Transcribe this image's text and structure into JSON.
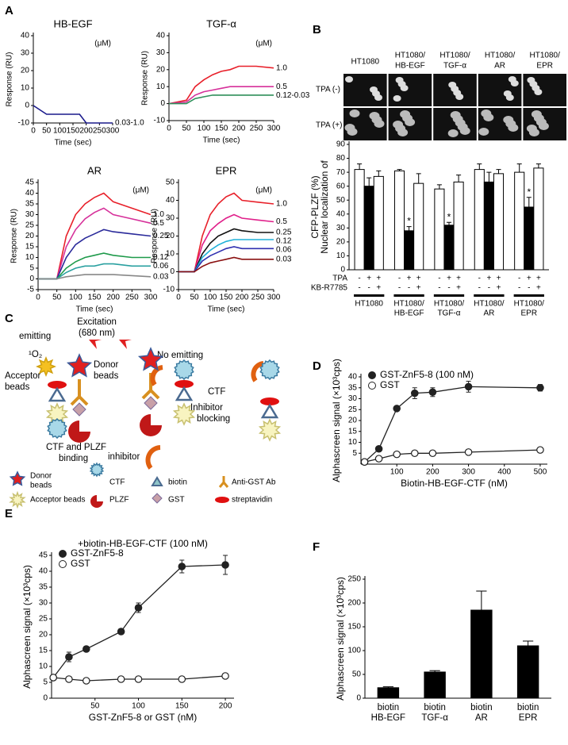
{
  "panels": [
    "A",
    "B",
    "C",
    "D",
    "E",
    "F"
  ],
  "panel_b_images": {
    "columns": [
      [
        "HT1080"
      ],
      [
        "HT1080/",
        "HB-EGF"
      ],
      [
        "HT1080/",
        "TGF-α"
      ],
      [
        "HT1080/",
        "AR"
      ],
      [
        "HT1080/",
        "EPR"
      ]
    ],
    "rows": [
      "TPA (-)",
      "TPA (+)"
    ]
  },
  "diagram": {
    "excitation": [
      "Excitation",
      "(680 nm)"
    ],
    "emitting": "emitting",
    "singlet_oxygen": "¹O₂",
    "acceptor": [
      "Acceptor",
      "beads"
    ],
    "donor": [
      "Donor",
      "beads"
    ],
    "binding": [
      "CTF and PLZF",
      "binding"
    ],
    "no_emitting": "No emitting",
    "ctf": "CTF",
    "blocking": [
      "Inhibitor",
      "blocking"
    ],
    "inhibitor": "inhibitor",
    "legend": {
      "donor": [
        "Donor",
        "beads"
      ],
      "acceptor": "Acceptor beads",
      "ctf": "CTF",
      "plzf": "PLZF",
      "biotin": "biotin",
      "gst": "GST",
      "ab": "Anti-GST Ab",
      "streptavidin": "streptavidin"
    }
  },
  "chart_data": [
    {
      "type": "line",
      "title": "HB-EGF",
      "unit": "(μM)",
      "xlabel": "Time (sec)",
      "ylabel": "Response (RU)",
      "end_labels": true,
      "x": [
        0,
        50,
        75,
        100,
        125,
        150,
        175,
        200,
        250,
        300
      ],
      "xlim": [
        0,
        300
      ],
      "xticks": [
        0,
        50,
        100,
        150,
        200,
        250,
        300
      ],
      "ylim": [
        -10,
        40
      ],
      "yticks": [
        -10,
        0,
        10,
        20,
        30,
        40
      ],
      "series": [
        {
          "name": "0.03-1.0",
          "color": "#1a1a8c",
          "values": [
            0,
            -5,
            -5,
            -5,
            -5,
            -5,
            -5,
            -10,
            -10,
            -10
          ]
        }
      ]
    },
    {
      "type": "line",
      "title": "TGF-α",
      "unit": "(μM)",
      "xlabel": "Time (sec)",
      "ylabel": "Response (RU)",
      "end_labels": true,
      "x": [
        0,
        50,
        75,
        100,
        125,
        150,
        175,
        200,
        250,
        300
      ],
      "xlim": [
        0,
        300
      ],
      "xticks": [
        0,
        50,
        100,
        150,
        200,
        250,
        300
      ],
      "ylim": [
        -10,
        40
      ],
      "yticks": [
        -10,
        0,
        10,
        20,
        30,
        40
      ],
      "series": [
        {
          "name": "1.0",
          "color": "#e8202a",
          "values": [
            0,
            2,
            10,
            14,
            17,
            19,
            20,
            22,
            22,
            21
          ]
        },
        {
          "name": "0.5",
          "color": "#d6309a",
          "values": [
            0,
            1,
            5,
            7,
            8,
            9,
            10,
            10,
            10,
            10
          ]
        },
        {
          "name": "0.12-0.03",
          "color": "#2f8f5a",
          "values": [
            0,
            0,
            3,
            4,
            5,
            5,
            5,
            5,
            5,
            5
          ]
        }
      ]
    },
    {
      "type": "line",
      "title": "AR",
      "unit": "(μM)",
      "xlabel": "Time (sec)",
      "ylabel": "Response (RU)",
      "end_labels": true,
      "x": [
        0,
        50,
        75,
        100,
        125,
        150,
        175,
        200,
        250,
        300
      ],
      "xlim": [
        0,
        300
      ],
      "xticks": [
        0,
        50,
        100,
        150,
        200,
        250,
        300
      ],
      "ylim": [
        -5,
        45
      ],
      "yticks": [
        -5,
        0,
        5,
        10,
        15,
        20,
        25,
        30,
        35,
        40,
        45
      ],
      "series": [
        {
          "name": "1.0",
          "color": "#e8202a",
          "values": [
            0,
            0,
            20,
            30,
            35,
            38,
            40,
            36,
            33,
            30
          ]
        },
        {
          "name": "0.5",
          "color": "#d6309a",
          "values": [
            0,
            0,
            15,
            23,
            28,
            31,
            33,
            30,
            28,
            26
          ]
        },
        {
          "name": "0.25",
          "color": "#2a2a9a",
          "values": [
            0,
            0,
            10,
            16,
            19,
            21,
            23,
            22,
            21,
            20
          ]
        },
        {
          "name": "0.12",
          "color": "#1e9a4a",
          "values": [
            0,
            0,
            5,
            8,
            10,
            11,
            12,
            11,
            10,
            10
          ]
        },
        {
          "name": "0.06",
          "color": "#2aa0a0",
          "values": [
            0,
            0,
            3,
            5,
            6,
            6,
            7,
            7,
            6,
            6
          ]
        },
        {
          "name": "0.03",
          "color": "#888888",
          "values": [
            0,
            0,
            1,
            1.5,
            2,
            2,
            2,
            2,
            1.5,
            1
          ]
        }
      ]
    },
    {
      "type": "line",
      "title": "EPR",
      "unit": "(μM)",
      "xlabel": "Time (sec)",
      "ylabel": "Response (RU)",
      "end_labels": true,
      "x": [
        0,
        50,
        75,
        100,
        125,
        150,
        175,
        200,
        250,
        300
      ],
      "xlim": [
        0,
        300
      ],
      "xticks": [
        0,
        50,
        100,
        150,
        200,
        250,
        300
      ],
      "ylim": [
        -10,
        50
      ],
      "yticks": [
        -10,
        0,
        10,
        20,
        30,
        40,
        50
      ],
      "series": [
        {
          "name": "1.0",
          "color": "#e8202a",
          "values": [
            0,
            0,
            20,
            32,
            38,
            42,
            44,
            40,
            39,
            38
          ]
        },
        {
          "name": "0.5",
          "color": "#e0208a",
          "values": [
            0,
            0,
            15,
            23,
            27,
            30,
            32,
            30,
            29,
            28
          ]
        },
        {
          "name": "0.25",
          "color": "#111111",
          "values": [
            0,
            0,
            10,
            16,
            20,
            22,
            24,
            23,
            22,
            22
          ]
        },
        {
          "name": "0.12",
          "color": "#20b0d8",
          "values": [
            0,
            0,
            8,
            12,
            15,
            17,
            18,
            18,
            18,
            18
          ]
        },
        {
          "name": "0.06",
          "color": "#3030b0",
          "values": [
            0,
            0,
            6,
            9,
            11,
            13,
            14,
            13,
            13,
            13
          ]
        },
        {
          "name": "0.03",
          "color": "#8a1010",
          "values": [
            0,
            0,
            3,
            5,
            6,
            7,
            8,
            7,
            7,
            7
          ]
        }
      ]
    },
    {
      "type": "bar",
      "ylabel": [
        "Nuclear localization of",
        "CFP-PLZF (%)"
      ],
      "row_labels": [
        "TPA",
        "KB-R7785"
      ],
      "categories": [
        [
          "HT1080"
        ],
        [
          "HT1080/",
          "HB-EGF"
        ],
        [
          "HT1080/",
          "TGF-α"
        ],
        [
          "HT1080/",
          "AR"
        ],
        [
          "HT1080/",
          "EPR"
        ]
      ],
      "ylim": [
        0,
        90
      ],
      "yticks": [
        0,
        10,
        20,
        30,
        40,
        50,
        60,
        70,
        80,
        90
      ],
      "series": [
        {
          "color": "#ffffff",
          "tpa": "-",
          "kb": "-",
          "values": [
            72,
            71,
            58,
            72,
            70
          ],
          "errors": [
            4,
            1,
            3,
            4,
            6
          ]
        },
        {
          "color": "#000000",
          "tpa": "+",
          "kb": "-",
          "values": [
            60,
            28,
            32,
            63,
            45
          ],
          "errors": [
            6,
            3,
            2,
            7,
            7
          ],
          "significance": [
            null,
            "*",
            "*",
            null,
            "*"
          ]
        },
        {
          "color": "#ffffff",
          "tpa": "+",
          "kb": "+",
          "values": [
            67,
            62,
            63,
            69,
            73
          ],
          "errors": [
            4,
            7,
            5,
            3,
            3
          ]
        }
      ]
    },
    {
      "type": "line",
      "xlabel": "Biotin-HB-EGF-CTF (nM)",
      "ylabel": "Alphascreen signal (×10³cps)",
      "legend": "upper left",
      "x": [
        10,
        50,
        100,
        150,
        200,
        300,
        500
      ],
      "xlim": [
        0,
        520
      ],
      "xticks": [
        100,
        200,
        300,
        400,
        500
      ],
      "ylim": [
        0,
        40
      ],
      "yticks": [
        5,
        10,
        15,
        20,
        25,
        30,
        35,
        40
      ],
      "series": [
        {
          "name": "GST-ZnF5-8 (100 nM)",
          "color": "#222222",
          "fill": "#222222",
          "values": [
            1,
            7,
            25.5,
            32.5,
            33,
            35.5,
            35
          ],
          "errors": [
            0.3,
            0.5,
            0.8,
            2.5,
            2,
            2.5,
            1.5
          ]
        },
        {
          "name": "GST",
          "color": "#222222",
          "fill": "#ffffff",
          "values": [
            1,
            2.5,
            4.5,
            5,
            5,
            5.5,
            6.5
          ],
          "errors": [
            0.2,
            0.3,
            0.4,
            0.4,
            0.4,
            0.4,
            0.4
          ]
        }
      ]
    },
    {
      "type": "line",
      "title": "+biotin-HB-EGF-CTF (100 nM)",
      "xlabel": "GST-ZnF5-8 or GST (nM)",
      "ylabel": "Alphascreen signal (×10³cps)",
      "legend": "upper left",
      "x": [
        2,
        20,
        40,
        80,
        100,
        150,
        200
      ],
      "xlim": [
        0,
        210
      ],
      "xticks": [
        50,
        100,
        150,
        200
      ],
      "ylim": [
        0,
        45
      ],
      "yticks": [
        0,
        5,
        10,
        15,
        20,
        25,
        30,
        35,
        40,
        45
      ],
      "series": [
        {
          "name": "GST-ZnF5-8",
          "color": "#222222",
          "fill": "#222222",
          "values": [
            6.5,
            13,
            15.5,
            21,
            28.5,
            41.5,
            42
          ],
          "errors": [
            0.5,
            1.5,
            0.8,
            0.8,
            1.5,
            2,
            3
          ]
        },
        {
          "name": "GST",
          "color": "#222222",
          "fill": "#ffffff",
          "values": [
            6.5,
            6,
            5.5,
            6,
            6,
            6,
            7
          ],
          "errors": [
            0.3,
            0.3,
            0.3,
            0.3,
            0.3,
            0.3,
            0.3
          ]
        }
      ]
    },
    {
      "type": "bar",
      "ylabel": "Alphascreen signal (×10³cps)",
      "color": "#000000",
      "categories": [
        [
          "biotin",
          "HB-EGF"
        ],
        [
          "biotin",
          "TGF-α"
        ],
        [
          "biotin",
          "AR"
        ],
        [
          "biotin",
          "EPR"
        ]
      ],
      "values": [
        22,
        55,
        185,
        110
      ],
      "errors": [
        2,
        3,
        40,
        10
      ],
      "ylim": [
        0,
        250
      ],
      "yticks": [
        0,
        50,
        100,
        150,
        200,
        250
      ]
    }
  ]
}
